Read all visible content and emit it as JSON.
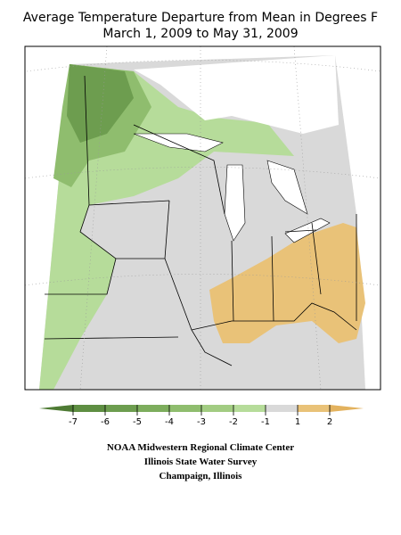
{
  "title": [
    "Average Temperature Departure from Mean in Degrees F",
    "March 1, 2009 to May 31, 2009"
  ],
  "legend": {
    "ticks": [
      -7,
      -6,
      -5,
      -4,
      -3,
      -2,
      -1,
      1,
      2
    ],
    "colors": [
      "#4e7b34",
      "#5e8e42",
      "#6d9d4f",
      "#7dad5d",
      "#8fbd6e",
      "#a2cc82",
      "#b6dc9a",
      "#d9d9d9",
      "#e9c278",
      "#e3b25e"
    ]
  },
  "footer": [
    "NOAA Midwestern Regional Climate Center",
    "Illinois State Water Survey",
    "Champaign, Illinois"
  ]
}
